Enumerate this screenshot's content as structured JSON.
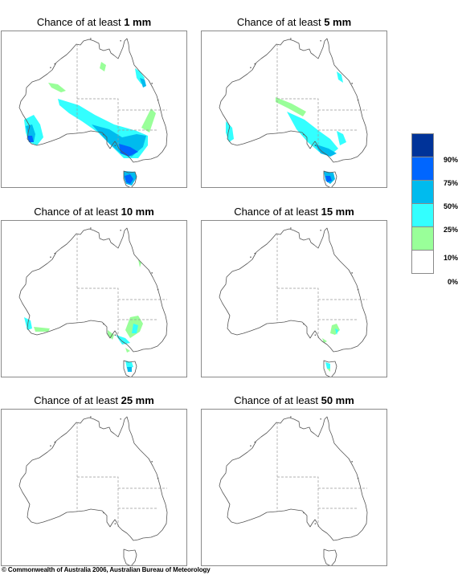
{
  "panels": [
    {
      "prefix": "Chance of at least ",
      "amount": "1 mm",
      "level": 1
    },
    {
      "prefix": "Chance of at least ",
      "amount": "5 mm",
      "level": 2
    },
    {
      "prefix": "Chance of at least ",
      "amount": "10 mm",
      "level": 3
    },
    {
      "prefix": "Chance of at least ",
      "amount": "15 mm",
      "level": 4
    },
    {
      "prefix": "Chance of at least ",
      "amount": "25 mm",
      "level": 5
    },
    {
      "prefix": "Chance of at least ",
      "amount": "50 mm",
      "level": 6
    }
  ],
  "legend": {
    "items": [
      {
        "color": "#003399",
        "label": ""
      },
      {
        "color": "#0066ff",
        "label": "90%"
      },
      {
        "color": "#00bbee",
        "label": "75%"
      },
      {
        "color": "#33ffff",
        "label": "50%"
      },
      {
        "color": "#99ff99",
        "label": "25%"
      },
      {
        "color": "#ffffff",
        "label": "10%"
      }
    ],
    "bottom_label": "0%"
  },
  "copyright": "© Commonwealth of Australia 2006, Australian Bureau of Meteorology"
}
